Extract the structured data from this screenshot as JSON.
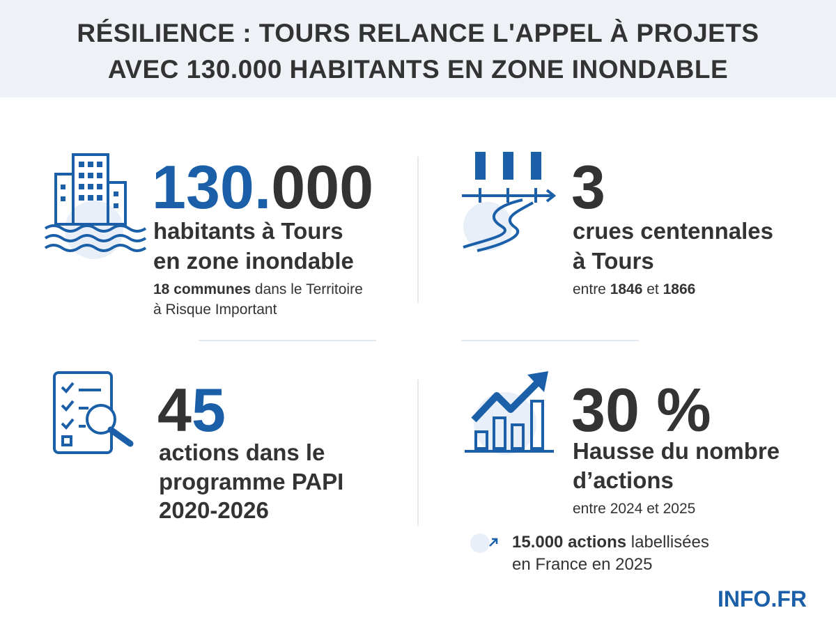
{
  "header": {
    "title": [
      "RÉSILIENCE : TOURS RELANCE L'APPEL À PROJETS",
      "AVEC 130.000 HABITANTS EN ZONE INONDABLE"
    ]
  },
  "stats": [
    {
      "number": [
        "130.",
        "000"
      ],
      "label": [
        "habitants à Tours",
        "en zone inondable"
      ],
      "note": [
        [
          "18 communes",
          " dans le Territoire"
        ],
        [
          "à Risque Important"
        ]
      ]
    },
    {
      "number": [
        "3"
      ],
      "label": [
        "crues centennales",
        "à Tours"
      ],
      "note": [
        [
          "entre ",
          "1846",
          " et ",
          "1866"
        ]
      ]
    },
    {
      "number": [
        "4",
        "5"
      ],
      "label": [
        "actions dans le",
        "programme PAPI",
        "2020-2026"
      ]
    },
    {
      "number": [
        "30 %"
      ],
      "label": [
        "Hausse du nombre",
        "d’actions"
      ],
      "note": [
        [
          "entre 2024 et 2025"
        ]
      ],
      "extra": [
        [
          "15.000 actions",
          " labellisées"
        ],
        [
          "en France en 2025"
        ]
      ]
    }
  ],
  "footer": {
    "brand": "INFO.FR"
  }
}
